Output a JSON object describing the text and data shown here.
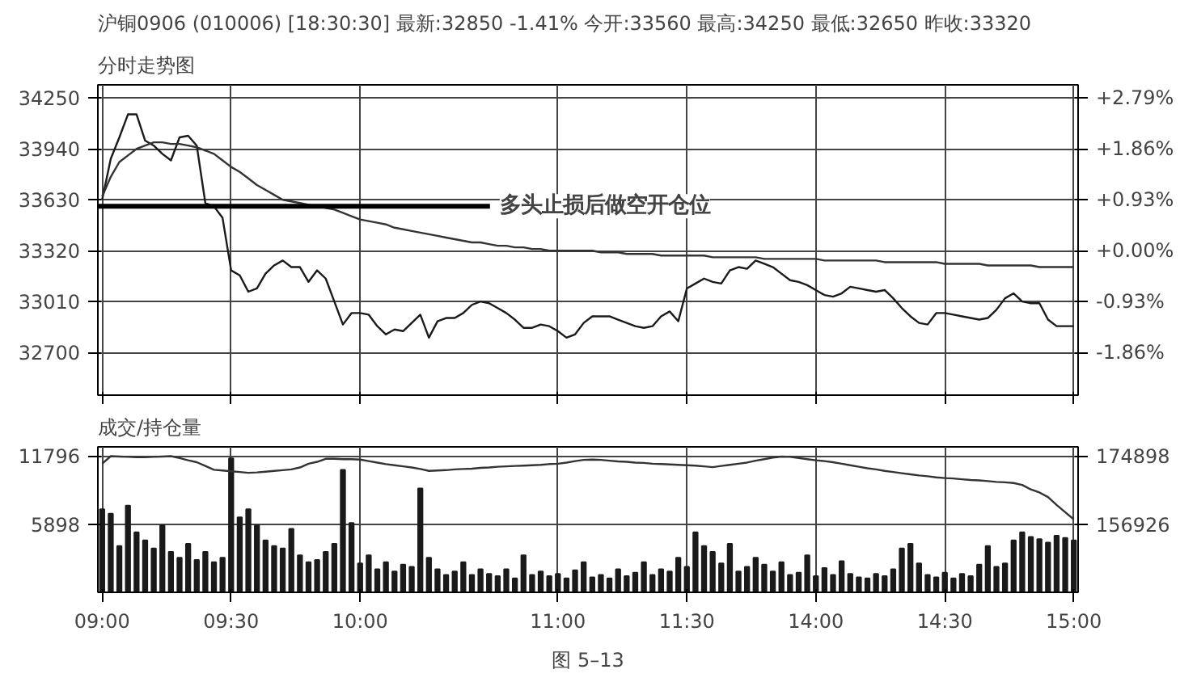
{
  "chart_data": [
    {
      "type": "line",
      "title": "沪铜0906 (010006) [18:30:30] 最新:32850 -1.41% 今开:33560 最高:34250 最低:32650 昨收:33320",
      "subtitle": "分时走势图",
      "categories": [
        null,
        null,
        null,
        null,
        null,
        null,
        null,
        null,
        null,
        null,
        null,
        null,
        null,
        null,
        null,
        null,
        null,
        null,
        null,
        null,
        null,
        null,
        null,
        null,
        null,
        null,
        null,
        null,
        null,
        null,
        null,
        null,
        null,
        null,
        null,
        null,
        null,
        null,
        null,
        null,
        null,
        null,
        null,
        null,
        null,
        null,
        null,
        null,
        null,
        null,
        null,
        null,
        null,
        null,
        null,
        null,
        null,
        null,
        null,
        null,
        null,
        null,
        null,
        null,
        null,
        null,
        null,
        null,
        null,
        null,
        null,
        null,
        null,
        null,
        null,
        null,
        null,
        null,
        null,
        null,
        null,
        null,
        null,
        null,
        null,
        null,
        null,
        null,
        null,
        null,
        null,
        null,
        null,
        null,
        null,
        null,
        null,
        null,
        null,
        null,
        null,
        null,
        null,
        null,
        null,
        null,
        null,
        null,
        null,
        null,
        null,
        null,
        null,
        null
      ],
      "ylim": [
        32440,
        34330
      ],
      "yticks": [
        32700,
        33010,
        33320,
        33630,
        33940,
        34250
      ],
      "y2lim": [
        -2.641,
        3.031
      ],
      "y2ticks": [
        {
          "value": -1.86,
          "label": "-1.86%"
        },
        {
          "value": -0.93,
          "label": "-0.93%"
        },
        {
          "value": 0,
          "label": "+0.00%"
        },
        {
          "value": 0.93,
          "label": "+0.93%"
        },
        {
          "value": 1.86,
          "label": "+1.86%"
        },
        {
          "value": 2.79,
          "label": "+2.79%"
        }
      ],
      "tick_labels": "y",
      "grid": true,
      "ref_lines": [
        {
          "axis": "y",
          "value": 33590,
          "label": "多头止损后做空开仓位",
          "color": "#000000"
        }
      ],
      "series": [
        {
          "color": "#1a1a1a",
          "values": [
            33630,
            33880,
            34010,
            34150,
            34150,
            33990,
            33960,
            33910,
            33870,
            34010,
            34020,
            33960,
            33610,
            33590,
            33520,
            33200,
            33170,
            33070,
            33090,
            33180,
            33230,
            33260,
            33220,
            33220,
            33130,
            33200,
            33150,
            33010,
            32870,
            32940,
            32940,
            32930,
            32860,
            32810,
            32840,
            32830,
            32880,
            32930,
            32790,
            32890,
            32910,
            32910,
            32940,
            32990,
            33010,
            33000,
            32970,
            32940,
            32900,
            32850,
            32850,
            32870,
            32860,
            32830,
            32790,
            32810,
            32880,
            32920,
            32920,
            32920,
            32900,
            32880,
            32860,
            32850,
            32860,
            32920,
            32950,
            32890,
            33090,
            33120,
            33150,
            33130,
            33120,
            33200,
            33220,
            33210,
            33260,
            33240,
            33220,
            33180,
            33140,
            33130,
            33110,
            33080,
            33050,
            33040,
            33060,
            33100,
            33090,
            33080,
            33070,
            33080,
            33030,
            32970,
            32920,
            32880,
            32870,
            32940,
            32940,
            32930,
            32920,
            32910,
            32900,
            32910,
            32960,
            33030,
            33060,
            33010,
            33000,
            33000,
            32900,
            32860,
            32860,
            32860
          ]
        },
        {
          "color": "#333333",
          "values": [
            33650,
            33770,
            33860,
            33900,
            33940,
            33960,
            33980,
            33980,
            33970,
            33970,
            33960,
            33950,
            33930,
            33910,
            33870,
            33830,
            33800,
            33760,
            33720,
            33690,
            33660,
            33630,
            33620,
            33610,
            33600,
            33590,
            33580,
            33570,
            33550,
            33530,
            33510,
            33500,
            33490,
            33480,
            33460,
            33450,
            33440,
            33430,
            33420,
            33410,
            33400,
            33390,
            33380,
            33370,
            33370,
            33360,
            33350,
            33350,
            33340,
            33340,
            33330,
            33330,
            33320,
            33320,
            33320,
            33320,
            33320,
            33320,
            33310,
            33310,
            33310,
            33300,
            33300,
            33300,
            33300,
            33290,
            33290,
            33290,
            33290,
            33290,
            33290,
            33280,
            33280,
            33280,
            33280,
            33280,
            33280,
            33270,
            33270,
            33270,
            33270,
            33270,
            33270,
            33270,
            33260,
            33260,
            33260,
            33260,
            33260,
            33260,
            33260,
            33250,
            33250,
            33250,
            33250,
            33250,
            33250,
            33250,
            33240,
            33240,
            33240,
            33240,
            33240,
            33230,
            33230,
            33230,
            33230,
            33230,
            33230,
            33220,
            33220,
            33220,
            33220,
            33220
          ]
        }
      ]
    },
    {
      "type": "bar",
      "title": "成交/持仓量",
      "annotations": [
        "图 5–13"
      ],
      "categories": [
        "09:00",
        null,
        null,
        null,
        null,
        null,
        null,
        null,
        null,
        null,
        null,
        null,
        null,
        null,
        null,
        "09:30",
        null,
        null,
        null,
        null,
        null,
        null,
        null,
        null,
        null,
        null,
        null,
        null,
        null,
        null,
        "10:00",
        null,
        null,
        null,
        null,
        null,
        null,
        null,
        null,
        null,
        null,
        null,
        null,
        null,
        null,
        null,
        null,
        null,
        null,
        null,
        null,
        null,
        null,
        "11:00",
        null,
        null,
        null,
        null,
        null,
        null,
        null,
        null,
        null,
        null,
        null,
        null,
        null,
        null,
        "11:30",
        null,
        null,
        null,
        null,
        null,
        null,
        null,
        null,
        null,
        null,
        null,
        null,
        null,
        null,
        "14:00",
        null,
        null,
        null,
        null,
        null,
        null,
        null,
        null,
        null,
        null,
        null,
        null,
        null,
        null,
        "14:30",
        null,
        null,
        null,
        null,
        null,
        null,
        null,
        null,
        null,
        null,
        null,
        null,
        null,
        null,
        "15:00"
      ],
      "ylim": [
        0,
        12600
      ],
      "yticks": [
        5898,
        11796
      ],
      "y2lim": [
        138954,
        177348
      ],
      "y2ticks": [
        156926,
        174898
      ],
      "grid": true,
      "series": [
        {
          "color": "#1a1a1a",
          "values": [
            7200,
            6800,
            4000,
            7500,
            5200,
            4500,
            3800,
            5800,
            3500,
            3000,
            4200,
            2800,
            3500,
            2600,
            3000,
            11600,
            6500,
            7200,
            5800,
            4500,
            4000,
            3800,
            5500,
            3200,
            2600,
            2800,
            3500,
            4200,
            10600,
            6000,
            2500,
            3200,
            2000,
            2600,
            1800,
            2400,
            2200,
            9000,
            3000,
            2000,
            1500,
            1800,
            2600,
            1500,
            2000,
            1600,
            1400,
            2000,
            1200,
            3200,
            1500,
            1800,
            1400,
            1600,
            1200,
            1900,
            2600,
            1300,
            1500,
            1200,
            2000,
            1400,
            1700,
            2600,
            1500,
            2000,
            1800,
            3000,
            2200,
            5200,
            4000,
            3500,
            2500,
            4200,
            1800,
            2200,
            3000,
            2400,
            1800,
            2600,
            1500,
            1700,
            3200,
            1400,
            2100,
            1500,
            2700,
            1600,
            1300,
            1200,
            1600,
            1400,
            2000,
            3800,
            4200,
            2500,
            1500,
            1300,
            1700,
            1200,
            1600,
            1400,
            2400,
            4000,
            2200,
            2500,
            4500,
            5200,
            4800,
            4600,
            4300,
            4900,
            4700,
            4500
          ]
        },
        {
          "type": "line",
          "axis": "y2",
          "color": "#333333",
          "values": [
            172900,
            174900,
            174800,
            174700,
            174600,
            174600,
            174700,
            174800,
            174900,
            174400,
            173800,
            173300,
            172300,
            171300,
            171100,
            170900,
            170700,
            170500,
            170600,
            170800,
            171000,
            171200,
            171400,
            171900,
            172900,
            173400,
            174200,
            174200,
            174100,
            174100,
            174000,
            173600,
            173200,
            172800,
            172500,
            172200,
            171900,
            171500,
            171000,
            171100,
            171200,
            171400,
            171500,
            171600,
            171800,
            171900,
            172100,
            172200,
            172300,
            172400,
            172500,
            172600,
            172800,
            172900,
            173200,
            173600,
            173900,
            174000,
            173900,
            173700,
            173500,
            173400,
            173200,
            173100,
            172900,
            172800,
            172700,
            172600,
            172500,
            172400,
            172200,
            172000,
            172300,
            172600,
            172900,
            173200,
            173700,
            174100,
            174500,
            174800,
            174700,
            174400,
            174100,
            173800,
            173600,
            173300,
            172900,
            172500,
            172100,
            171700,
            171400,
            171000,
            170700,
            170400,
            170100,
            169800,
            169600,
            169300,
            169100,
            169000,
            168800,
            168600,
            168500,
            168300,
            168100,
            168000,
            167800,
            167300,
            166100,
            165300,
            164100,
            162000,
            160100,
            158200
          ]
        }
      ]
    }
  ]
}
